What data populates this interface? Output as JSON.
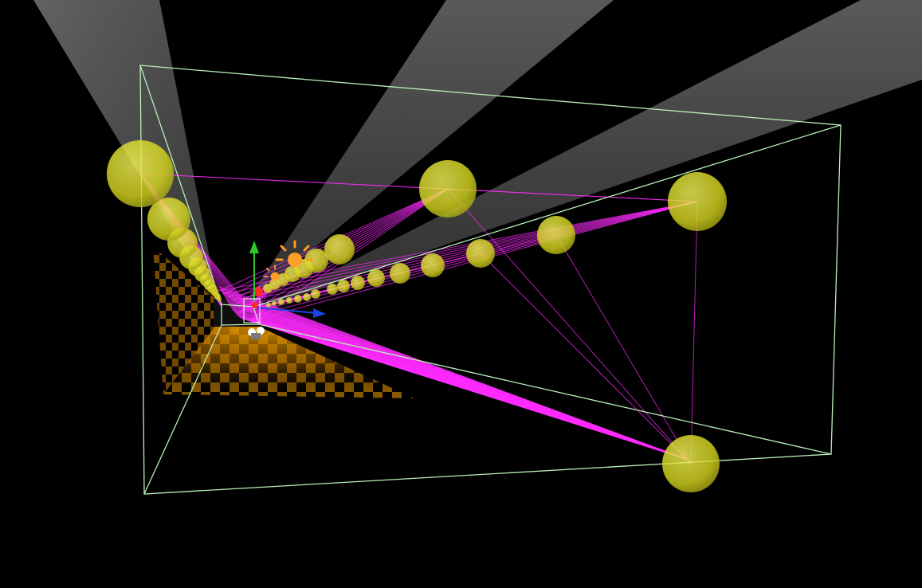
{
  "scene": {
    "background": "#000000",
    "volume_outline_color": "#b8f0b8",
    "light_ray_color": "#ff2bff",
    "sphere_color": "#e8ea2a",
    "cone_color": "#9a9a9a",
    "floor_dark": "#000000",
    "floor_light": "#f3a000",
    "gizmo_y_axis_color": "#2ec82e",
    "gizmo_z_axis_color": "#1a44e6",
    "sun_icon_color": "#ff9d2b",
    "corner_light_sphere_count": 4,
    "wall_light_sphere_count": 18,
    "ceiling_light_sphere_count": 12,
    "icons": [
      "sun-icon",
      "transform-gizmo-icon",
      "camera-icon"
    ]
  }
}
